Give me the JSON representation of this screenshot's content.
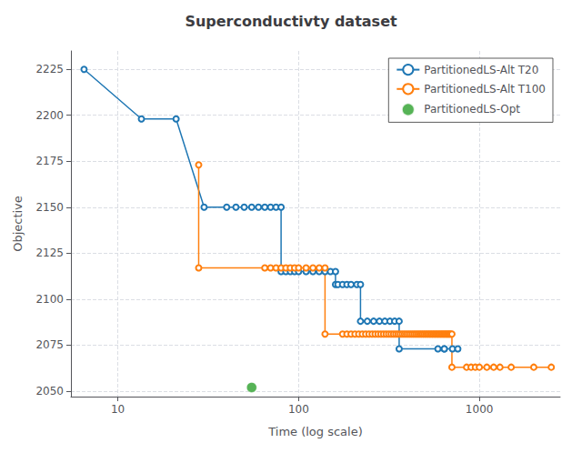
{
  "chart_data": {
    "type": "line",
    "title": "Superconductivty dataset",
    "xlabel": "Time (log scale)",
    "ylabel": "Objective",
    "log": "x",
    "xlim": [
      5.5,
      2800
    ],
    "xticks": [
      10,
      100,
      1000
    ],
    "ylim": [
      2047,
      2235
    ],
    "yticks": [
      2050,
      2075,
      2100,
      2125,
      2150,
      2175,
      2200,
      2225
    ],
    "grid": true,
    "legend": "upper right",
    "series": [
      {
        "name": "PartitionedLS-Alt T20",
        "type": "line",
        "color": "#1f77b4",
        "marker": "open_circle",
        "x": [
          6.5,
          13.5,
          21.0,
          30.0,
          40.0,
          45.0,
          50.0,
          55.0,
          60.0,
          65.0,
          70.0,
          75.0,
          80.0,
          80.0,
          85.0,
          90.0,
          95.0,
          100.0,
          110.0,
          120.0,
          130.0,
          140.0,
          150.0,
          160.0,
          160.0,
          165.0,
          175.0,
          185.0,
          195.0,
          210.0,
          220.0,
          220.0,
          240.0,
          260.0,
          280.0,
          300.0,
          320.0,
          340.0,
          360.0,
          360.0,
          590.0,
          640.0,
          640.0,
          710.0,
          760.0
        ],
        "values": [
          2225,
          2198,
          2198,
          2150,
          2150,
          2150,
          2150,
          2150,
          2150,
          2150,
          2150,
          2150,
          2150,
          2115,
          2115,
          2115,
          2115,
          2115,
          2115,
          2115,
          2115,
          2115,
          2115,
          2115,
          2108,
          2108,
          2108,
          2108,
          2108,
          2108,
          2108,
          2088,
          2088,
          2088,
          2088,
          2088,
          2088,
          2088,
          2088,
          2073,
          2073,
          2073,
          2073,
          2073,
          2073
        ]
      },
      {
        "name": "PartitionedLS-Alt T100",
        "type": "line",
        "color": "#ff7f0e",
        "marker": "open_circle",
        "x": [
          28.0,
          28.0,
          65.0,
          70.0,
          75.0,
          80.0,
          85.0,
          90.0,
          95.0,
          100.0,
          110.0,
          120.0,
          130.0,
          140.0,
          140.0,
          175.0,
          185.0,
          195.0,
          205.0,
          215.0,
          225.0,
          235.0,
          245.0,
          255.0,
          265.0,
          275.0,
          285.0,
          295.0,
          305.0,
          315.0,
          325.0,
          335.0,
          345.0,
          355.0,
          365.0,
          375.0,
          385.0,
          395.0,
          405.0,
          415.0,
          425.0,
          435.0,
          445.0,
          455.0,
          465.0,
          475.0,
          485.0,
          495.0,
          505.0,
          515.0,
          525.0,
          535.0,
          545.0,
          555.0,
          565.0,
          575.0,
          585.0,
          595.0,
          605.0,
          615.0,
          625.0,
          635.0,
          645.0,
          655.0,
          665.0,
          675.0,
          685.0,
          695.0,
          705.0,
          705.0,
          850.0,
          900.0,
          950.0,
          1000.0,
          1100.0,
          1200.0,
          1300.0,
          1500.0,
          2000.0,
          2500.0
        ],
        "values": [
          2173,
          2117,
          2117,
          2117,
          2117,
          2117,
          2117,
          2117,
          2117,
          2117,
          2117,
          2117,
          2117,
          2117,
          2081,
          2081,
          2081,
          2081,
          2081,
          2081,
          2081,
          2081,
          2081,
          2081,
          2081,
          2081,
          2081,
          2081,
          2081,
          2081,
          2081,
          2081,
          2081,
          2081,
          2081,
          2081,
          2081,
          2081,
          2081,
          2081,
          2081,
          2081,
          2081,
          2081,
          2081,
          2081,
          2081,
          2081,
          2081,
          2081,
          2081,
          2081,
          2081,
          2081,
          2081,
          2081,
          2081,
          2081,
          2081,
          2081,
          2081,
          2081,
          2081,
          2081,
          2081,
          2081,
          2081,
          2081,
          2081,
          2063,
          2063,
          2063,
          2063,
          2063,
          2063,
          2063,
          2063,
          2063,
          2063,
          2063
        ]
      },
      {
        "name": "PartitionedLS-Opt",
        "type": "scatter",
        "color": "#2ca02c",
        "marker": "circle",
        "x": [
          55.0
        ],
        "values": [
          2052
        ]
      }
    ]
  }
}
